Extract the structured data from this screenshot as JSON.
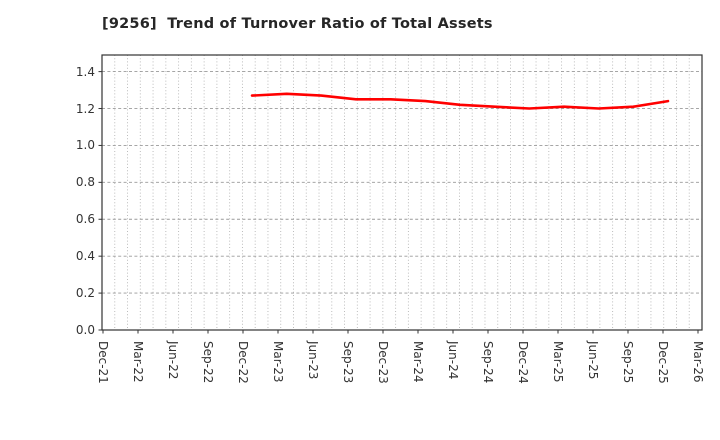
{
  "header": {
    "title": "[9256]  Trend of Turnover Ratio of Total Assets"
  },
  "colors": {
    "line": "#ff0000",
    "frame": "#333333",
    "grid_vertical": "#b5b5b5",
    "grid_horizontal": "#999999",
    "text": "#333333",
    "title_text": "#262626",
    "background": "#ffffff"
  },
  "chart_data": {
    "type": "line",
    "title": "[9256]  Trend of Turnover Ratio of Total Assets",
    "xlabel": "",
    "ylabel": "",
    "x_tick_labels": [
      "Dec-21",
      "Mar-22",
      "Jun-22",
      "Sep-22",
      "Dec-22",
      "Mar-23",
      "Jun-23",
      "Sep-23",
      "Dec-23",
      "Mar-24",
      "Jun-24",
      "Sep-24",
      "Dec-24",
      "Mar-25",
      "Jun-25",
      "Sep-25",
      "Dec-25",
      "Mar-26"
    ],
    "y_tick_labels": [
      "0.0",
      "0.2",
      "0.4",
      "0.6",
      "0.8",
      "1.0",
      "1.2",
      "1.4"
    ],
    "ylim": [
      0,
      1.49
    ],
    "y_gridline_step": 0.2,
    "grid": "both",
    "grid_style": {
      "vertical": "dotted",
      "horizontal": "dashed"
    },
    "legend_position": "none",
    "series": [
      {
        "name": "Turnover Ratio of Total Assets",
        "color": "#ff0000",
        "categories": [
          "Dec-22",
          "Mar-23",
          "Jun-23",
          "Sep-23",
          "Dec-23",
          "Mar-24",
          "Jun-24",
          "Sep-24",
          "Dec-24",
          "Mar-25",
          "Jun-25",
          "Sep-25",
          "Dec-25"
        ],
        "values": [
          1.27,
          1.28,
          1.27,
          1.25,
          1.25,
          1.24,
          1.22,
          1.21,
          1.2,
          1.21,
          1.2,
          1.21,
          1.24
        ]
      }
    ]
  }
}
